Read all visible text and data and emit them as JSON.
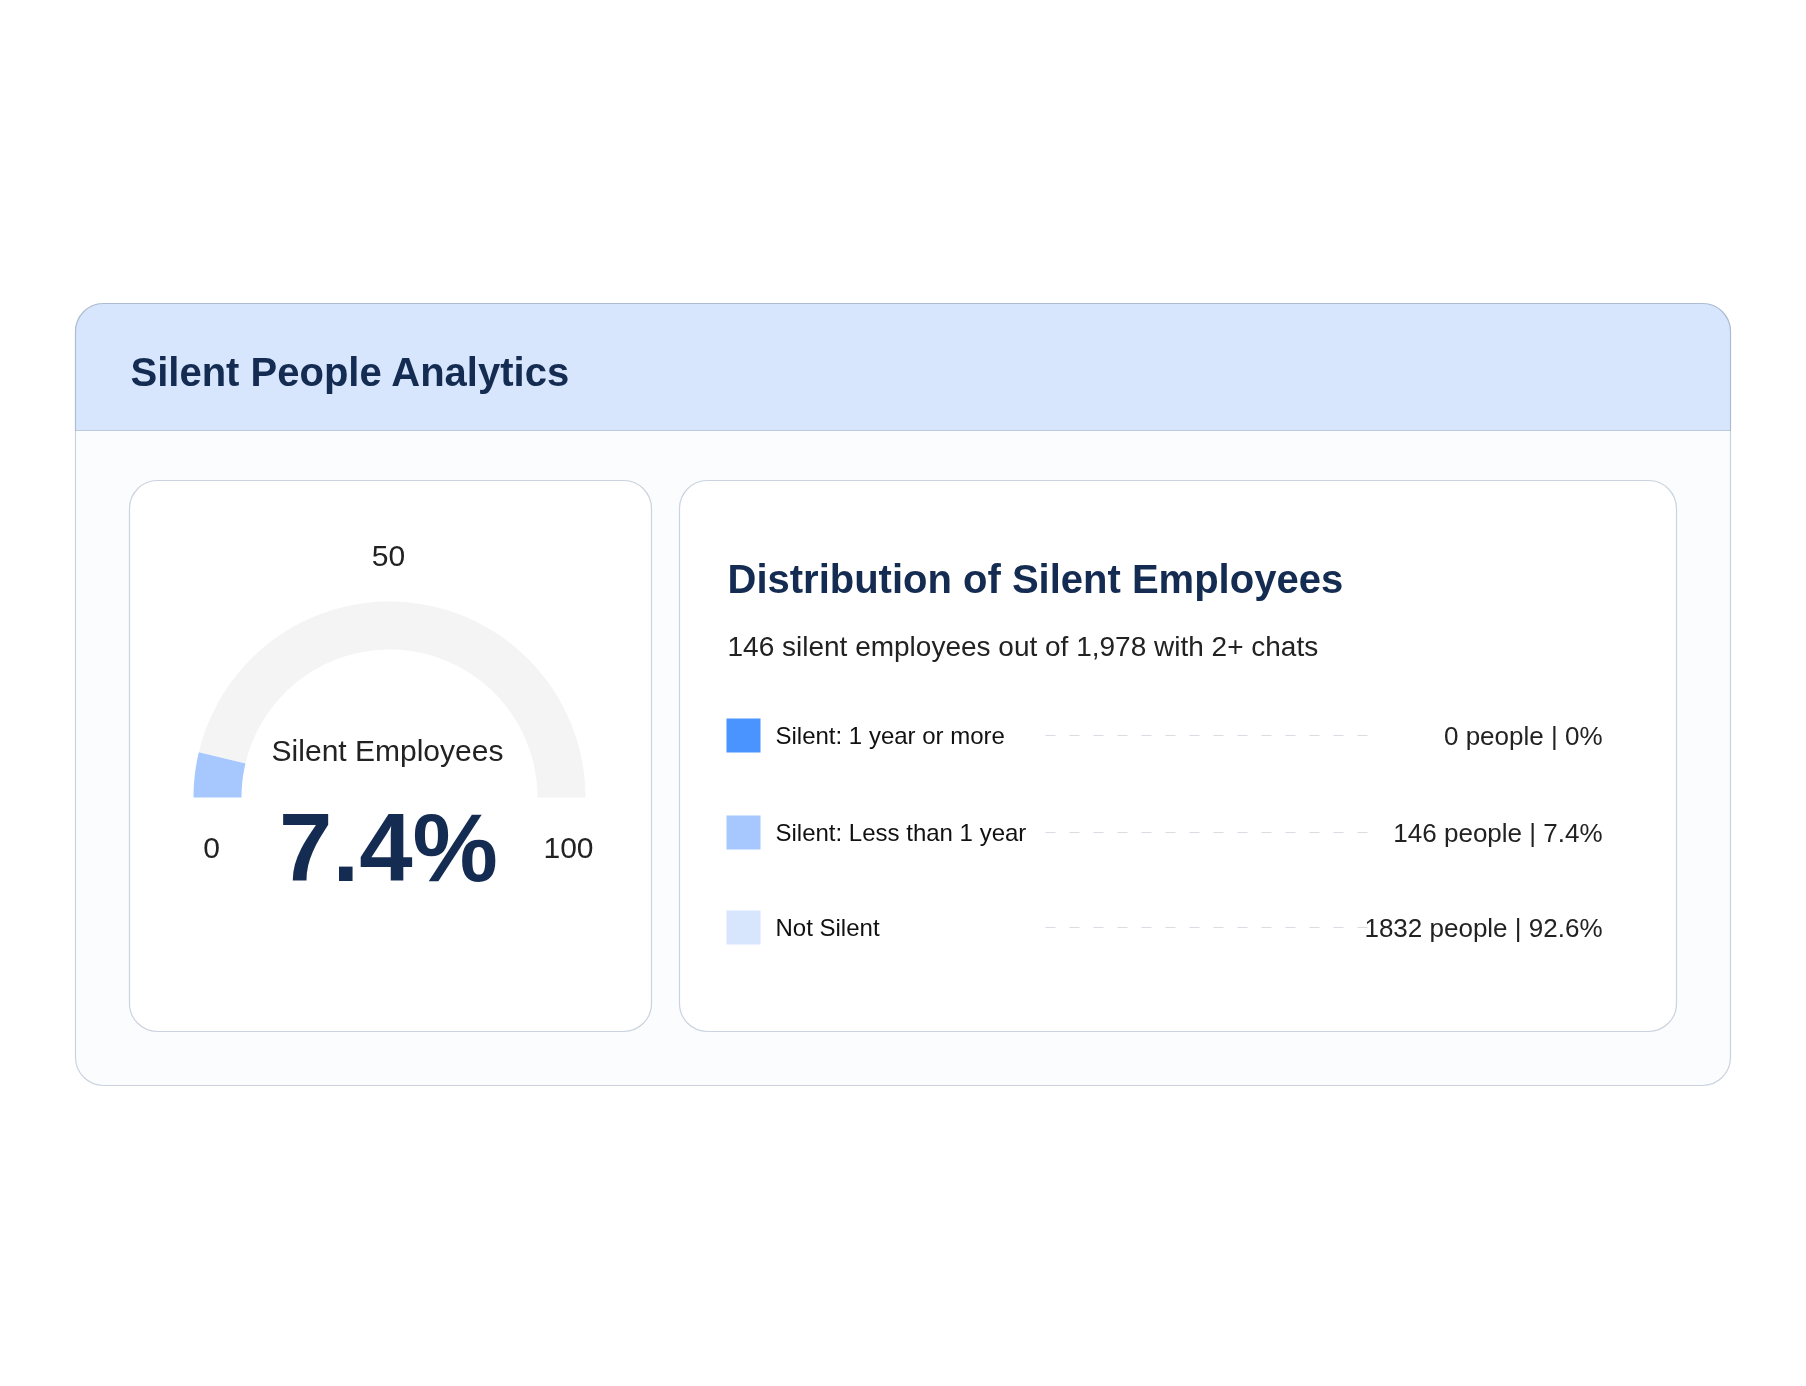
{
  "chart_data": [
    {
      "type": "other",
      "title": "Silent People Analytics"
    },
    {
      "type": "donut",
      "title": "Silent Employees",
      "categories": [
        null,
        null
      ],
      "values": [
        7.4,
        92.6
      ],
      "colors": [
        "#a6c8ff",
        "#f4f4f4"
      ],
      "annotations": [
        "0",
        "50",
        "100",
        "7.4%"
      ]
    },
    {
      "type": "other",
      "title": "Distribution of Silent Employees",
      "subtitle": "146 silent employees out of 1,978 with 2+ chats",
      "categories": [
        "Silent: 1 year or more",
        "Silent: Less than 1 year",
        "Not Silent"
      ],
      "colors": [
        "#4a94ff",
        "#a6c8ff",
        "#d8e6fd"
      ],
      "value_labels": [
        "0 people | 0%",
        "146 people | 7.4%",
        "1832 people | 92.6%"
      ]
    }
  ]
}
